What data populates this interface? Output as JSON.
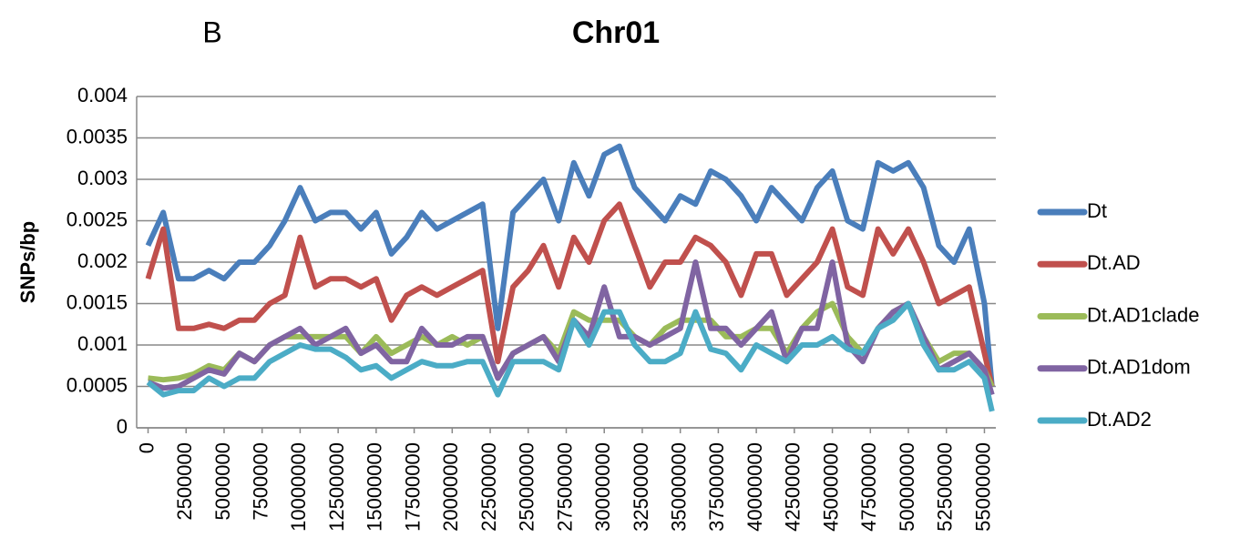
{
  "chart_data": {
    "type": "line",
    "panel_label": "B",
    "title": "Chr01",
    "y_label": "SNPs/bp",
    "x": [
      0,
      1000000,
      2000000,
      3000000,
      4000000,
      5000000,
      6000000,
      7000000,
      8000000,
      9000000,
      10000000,
      11000000,
      12000000,
      13000000,
      14000000,
      15000000,
      16000000,
      17000000,
      18000000,
      19000000,
      20000000,
      21000000,
      22000000,
      23000000,
      24000000,
      25000000,
      26000000,
      27000000,
      28000000,
      29000000,
      30000000,
      31000000,
      32000000,
      33000000,
      34000000,
      35000000,
      36000000,
      37000000,
      38000000,
      39000000,
      40000000,
      41000000,
      42000000,
      43000000,
      44000000,
      45000000,
      46000000,
      47000000,
      48000000,
      49000000,
      50000000,
      51000000,
      52000000,
      53000000,
      54000000,
      55000000,
      55500000
    ],
    "xlim": [
      -750000,
      55750000
    ],
    "xticks": [
      0,
      2500000,
      5000000,
      7500000,
      10000000,
      12500000,
      15000000,
      17500000,
      20000000,
      22500000,
      25000000,
      27500000,
      30000000,
      32500000,
      35000000,
      37500000,
      40000000,
      42500000,
      45000000,
      47500000,
      50000000,
      52500000,
      55000000
    ],
    "ylim": [
      0,
      0.004
    ],
    "yticks": [
      0,
      0.0005,
      0.001,
      0.0015,
      0.002,
      0.0025,
      0.003,
      0.0035,
      0.004
    ],
    "grid": true,
    "legend": "right",
    "series": [
      {
        "name": "Dt",
        "color": "#4a7ebb",
        "values": [
          0.0022,
          0.0026,
          0.0018,
          0.0018,
          0.0019,
          0.0018,
          0.002,
          0.002,
          0.0022,
          0.0025,
          0.0029,
          0.0025,
          0.0026,
          0.0026,
          0.0024,
          0.0026,
          0.0021,
          0.0023,
          0.0026,
          0.0024,
          0.0025,
          0.0026,
          0.0027,
          0.0012,
          0.0026,
          0.0028,
          0.003,
          0.0025,
          0.0032,
          0.0028,
          0.0033,
          0.0034,
          0.0029,
          0.0027,
          0.0025,
          0.0028,
          0.0027,
          0.0031,
          0.003,
          0.0028,
          0.0025,
          0.0029,
          0.0027,
          0.0025,
          0.0029,
          0.0031,
          0.0025,
          0.0024,
          0.0032,
          0.0031,
          0.0032,
          0.0029,
          0.0022,
          0.002,
          0.0024,
          0.0015,
          0.0005
        ]
      },
      {
        "name": "Dt.AD",
        "color": "#c0504d",
        "values": [
          0.0018,
          0.0024,
          0.0012,
          0.0012,
          0.00125,
          0.0012,
          0.0013,
          0.0013,
          0.0015,
          0.0016,
          0.0023,
          0.0017,
          0.0018,
          0.0018,
          0.0017,
          0.0018,
          0.0013,
          0.0016,
          0.0017,
          0.0016,
          0.0017,
          0.0018,
          0.0019,
          0.0008,
          0.0017,
          0.0019,
          0.0022,
          0.0017,
          0.0023,
          0.002,
          0.0025,
          0.0027,
          0.0022,
          0.0017,
          0.002,
          0.002,
          0.0023,
          0.0022,
          0.002,
          0.0016,
          0.0021,
          0.0021,
          0.0016,
          0.0018,
          0.002,
          0.0024,
          0.0017,
          0.0016,
          0.0024,
          0.0021,
          0.0024,
          0.002,
          0.0015,
          0.0016,
          0.0017,
          0.0009,
          0.0005
        ]
      },
      {
        "name": "Dt.AD1clade",
        "color": "#9bbb59",
        "values": [
          0.0006,
          0.00058,
          0.0006,
          0.00065,
          0.00075,
          0.0007,
          0.0009,
          0.0008,
          0.001,
          0.0011,
          0.0011,
          0.0011,
          0.0011,
          0.0011,
          0.0009,
          0.0011,
          0.0009,
          0.001,
          0.0011,
          0.001,
          0.0011,
          0.001,
          0.0011,
          0.0006,
          0.0009,
          0.001,
          0.0011,
          0.0009,
          0.0014,
          0.0013,
          0.0013,
          0.0013,
          0.0011,
          0.001,
          0.0012,
          0.0013,
          0.0013,
          0.0013,
          0.0011,
          0.0011,
          0.0012,
          0.0012,
          0.0009,
          0.0012,
          0.0014,
          0.0015,
          0.0011,
          0.0009,
          0.0012,
          0.0014,
          0.0015,
          0.0011,
          0.0008,
          0.0009,
          0.0009,
          0.0007,
          0.0005
        ]
      },
      {
        "name": "Dt.AD1dom",
        "color": "#8064a2",
        "values": [
          0.00055,
          0.00048,
          0.0005,
          0.0006,
          0.0007,
          0.00065,
          0.0009,
          0.0008,
          0.001,
          0.0011,
          0.0012,
          0.001,
          0.0011,
          0.0012,
          0.0009,
          0.001,
          0.0008,
          0.0008,
          0.0012,
          0.001,
          0.001,
          0.0011,
          0.0011,
          0.0006,
          0.0009,
          0.001,
          0.0011,
          0.0008,
          0.0013,
          0.0011,
          0.0017,
          0.0011,
          0.0011,
          0.001,
          0.0011,
          0.0012,
          0.002,
          0.0012,
          0.0012,
          0.001,
          0.0012,
          0.0014,
          0.0008,
          0.0012,
          0.0012,
          0.002,
          0.001,
          0.0008,
          0.0012,
          0.0014,
          0.0015,
          0.0011,
          0.0007,
          0.0008,
          0.0009,
          0.0007,
          0.0004
        ]
      },
      {
        "name": "Dt.AD2",
        "color": "#4bacc6",
        "values": [
          0.00055,
          0.0004,
          0.00045,
          0.00045,
          0.0006,
          0.0005,
          0.0006,
          0.0006,
          0.0008,
          0.0009,
          0.001,
          0.00095,
          0.00095,
          0.00085,
          0.0007,
          0.00075,
          0.0006,
          0.0007,
          0.0008,
          0.00075,
          0.00075,
          0.0008,
          0.0008,
          0.0004,
          0.0008,
          0.0008,
          0.0008,
          0.0007,
          0.0013,
          0.001,
          0.0014,
          0.0014,
          0.001,
          0.0008,
          0.0008,
          0.0009,
          0.0014,
          0.00095,
          0.0009,
          0.0007,
          0.001,
          0.0009,
          0.0008,
          0.001,
          0.001,
          0.0011,
          0.00095,
          0.0009,
          0.0012,
          0.0013,
          0.0015,
          0.001,
          0.0007,
          0.0007,
          0.0008,
          0.0006,
          0.0002
        ]
      }
    ]
  }
}
